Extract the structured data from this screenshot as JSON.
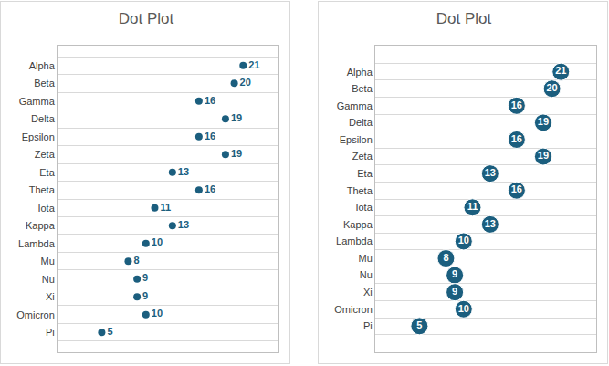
{
  "chart_data": [
    {
      "type": "scatter",
      "title": "Dot Plot",
      "categories": [
        "Alpha",
        "Beta",
        "Gamma",
        "Delta",
        "Epsilon",
        "Zeta",
        "Eta",
        "Theta",
        "Iota",
        "Kappa",
        "Lambda",
        "Mu",
        "Nu",
        "Xi",
        "Omicron",
        "Pi"
      ],
      "values": [
        21,
        20,
        16,
        19,
        16,
        19,
        13,
        16,
        11,
        13,
        10,
        8,
        9,
        9,
        10,
        5
      ],
      "color": "#1b5e7e",
      "marker": "dot",
      "data_labels": true,
      "xlim": [
        0,
        25
      ],
      "grid": true,
      "tick_labels": "y"
    },
    {
      "type": "scatter",
      "title": "Dot Plot",
      "categories": [
        "Alpha",
        "Beta",
        "Gamma",
        "Delta",
        "Epsilon",
        "Zeta",
        "Eta",
        "Theta",
        "Iota",
        "Kappa",
        "Lambda",
        "Mu",
        "Nu",
        "Xi",
        "Omicron",
        "Pi"
      ],
      "values": [
        21,
        20,
        16,
        19,
        16,
        19,
        13,
        16,
        11,
        13,
        10,
        8,
        9,
        9,
        10,
        5
      ],
      "color": "#1b5e7e",
      "marker": "bubble",
      "data_labels": true,
      "xlim": [
        0,
        25
      ],
      "grid": true,
      "tick_labels": "y"
    }
  ]
}
